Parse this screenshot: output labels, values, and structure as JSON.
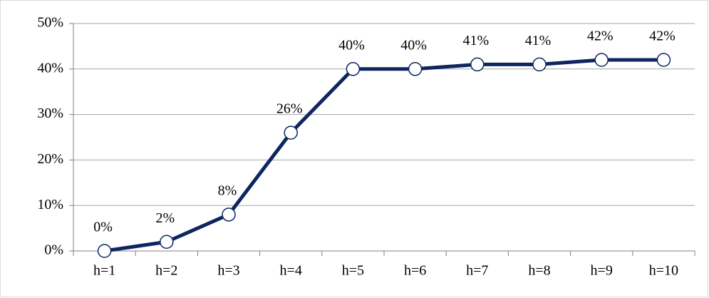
{
  "chart_data": {
    "type": "line",
    "categories": [
      "h=1",
      "h=2",
      "h=3",
      "h=4",
      "h=5",
      "h=6",
      "h=7",
      "h=8",
      "h=9",
      "h=10"
    ],
    "series": [
      {
        "color": "#0d2660",
        "values": [
          0,
          2,
          8,
          26,
          40,
          40,
          41,
          41,
          42,
          42
        ],
        "value_labels": [
          "0%",
          "2%",
          "8%",
          "26%",
          "40%",
          "40%",
          "41%",
          "41%",
          "42%",
          "42%"
        ]
      }
    ],
    "ylim": [
      0,
      50
    ],
    "yticks": [
      {
        "value": 0,
        "label": "0%"
      },
      {
        "value": 10,
        "label": "10%"
      },
      {
        "value": 20,
        "label": "20%"
      },
      {
        "value": 30,
        "label": "30%"
      },
      {
        "value": 40,
        "label": "40%"
      },
      {
        "value": 50,
        "label": "50%"
      }
    ],
    "grid": true
  }
}
